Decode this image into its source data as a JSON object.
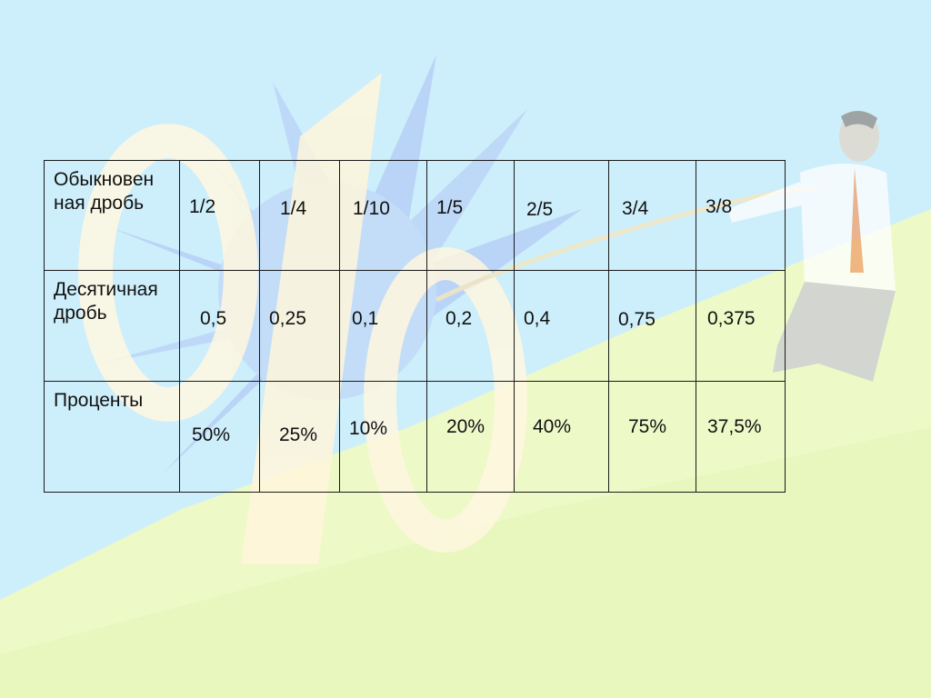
{
  "table": {
    "rows": [
      {
        "header": "Обыкновенная дробь",
        "header_lines": [
          "Обыкновен",
          "ная дробь"
        ],
        "cells": [
          "1/2",
          "1/4",
          "1/10",
          "1/5",
          "2/5",
          "3/4",
          "3/8"
        ]
      },
      {
        "header": "Десятичная дробь",
        "header_lines": [
          "Десятичная",
          "дробь"
        ],
        "cells": [
          "0,5",
          "0,25",
          "0,1",
          "0,2",
          "0,4",
          "0,75",
          "0,375"
        ]
      },
      {
        "header": "Проценты",
        "header_lines": [
          "Проценты"
        ],
        "cells": [
          "50%",
          "25%",
          "10%",
          "20%",
          "40%",
          "75%",
          "37,5%"
        ]
      }
    ]
  },
  "background": {
    "sky_color": "#cdeefb",
    "hill_color": "#eef9c8",
    "sun_color": "#b3c8f5",
    "percent_glyph_color": "#fff7e0",
    "illustration": "man-pulling-rope-icon"
  }
}
